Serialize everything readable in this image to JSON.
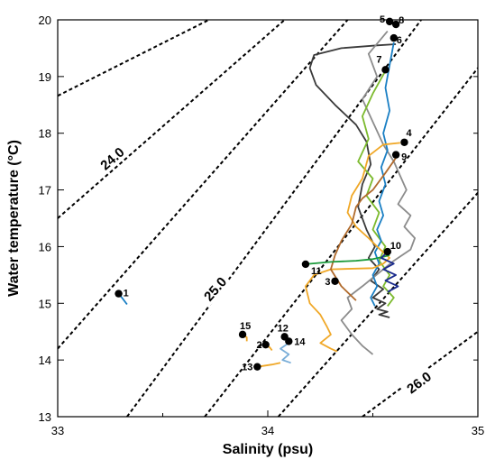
{
  "chart_data": {
    "type": "scatter",
    "title": "",
    "xlabel": "Salinity (psu)",
    "ylabel": "Water temperature (°C)",
    "xlim": [
      33,
      35
    ],
    "ylim": [
      13,
      20
    ],
    "x_ticks": [
      {
        "value": 33,
        "label": "33"
      },
      {
        "value": 34,
        "label": "34"
      },
      {
        "value": 35,
        "label": "35"
      }
    ],
    "x_minor_ticks": [
      33.5,
      34.5
    ],
    "y_ticks": [
      {
        "value": 13,
        "label": "13"
      },
      {
        "value": 14,
        "label": "14"
      },
      {
        "value": 15,
        "label": "15"
      },
      {
        "value": 16,
        "label": "16"
      },
      {
        "value": 17,
        "label": "17"
      },
      {
        "value": 18,
        "label": "18"
      },
      {
        "value": 19,
        "label": "19"
      },
      {
        "value": 20,
        "label": "20"
      }
    ],
    "grid": false,
    "legend": "none",
    "isopycnals": {
      "style": "dashed",
      "color": "#000000",
      "lines": [
        {
          "x": [
            33.0,
            33.72
          ],
          "y": [
            18.66,
            20.0
          ]
        },
        {
          "x": [
            33.0,
            34.08
          ],
          "y": [
            16.5,
            20.0
          ],
          "label": "24.0",
          "label_at": {
            "x": 33.26,
            "y": 17.55
          }
        },
        {
          "x": [
            33.0,
            34.38
          ],
          "y": [
            14.2,
            20.0
          ],
          "label": "25.0",
          "label_at": {
            "x": 33.75,
            "y": 15.25
          }
        },
        {
          "x": [
            33.33,
            34.73
          ],
          "y": [
            13.0,
            20.0
          ]
        },
        {
          "x": [
            33.7,
            35.0
          ],
          "y": [
            13.0,
            19.15
          ]
        },
        {
          "x": [
            34.05,
            35.0
          ],
          "y": [
            13.0,
            16.95
          ]
        },
        {
          "x": [
            34.45,
            35.0
          ],
          "y": [
            13.0,
            14.5
          ],
          "label": "26.0",
          "label_at": {
            "x": 34.72,
            "y": 13.6
          }
        }
      ]
    },
    "stations": [
      {
        "id": "1",
        "x": 33.29,
        "y": 15.17
      },
      {
        "id": "2",
        "x": 33.99,
        "y": 14.27
      },
      {
        "id": "3",
        "x": 34.32,
        "y": 15.39
      },
      {
        "id": "4",
        "x": 34.65,
        "y": 17.84
      },
      {
        "id": "5",
        "x": 34.58,
        "y": 19.97
      },
      {
        "id": "6",
        "x": 34.6,
        "y": 19.68
      },
      {
        "id": "7",
        "x": 34.56,
        "y": 19.12
      },
      {
        "id": "8",
        "x": 34.61,
        "y": 19.92
      },
      {
        "id": "9",
        "x": 34.61,
        "y": 17.62
      },
      {
        "id": "10",
        "x": 34.57,
        "y": 15.91
      },
      {
        "id": "11",
        "x": 34.18,
        "y": 15.69
      },
      {
        "id": "12",
        "x": 34.08,
        "y": 14.41
      },
      {
        "id": "13",
        "x": 33.95,
        "y": 13.88
      },
      {
        "id": "14",
        "x": 34.1,
        "y": 14.33
      },
      {
        "id": "15",
        "x": 33.88,
        "y": 14.45
      }
    ],
    "series": [
      {
        "color": "#3a3a3a",
        "x": [
          34.61,
          34.52,
          34.35,
          34.22,
          34.2,
          34.23,
          34.32,
          34.42,
          34.47,
          34.49,
          34.45,
          34.43,
          34.47,
          34.51,
          34.48,
          34.53,
          34.49,
          34.55,
          34.5,
          34.56,
          34.52,
          34.57,
          34.53,
          34.58
        ],
        "y": [
          19.57,
          19.55,
          19.5,
          19.38,
          19.15,
          18.85,
          18.5,
          18.15,
          17.85,
          17.45,
          17.1,
          16.7,
          16.3,
          16.0,
          15.8,
          15.6,
          15.4,
          15.25,
          15.1,
          15.0,
          14.9,
          14.85,
          14.8,
          14.75
        ]
      },
      {
        "color": "#8c8c8c",
        "x": [
          34.57,
          34.48,
          34.52,
          34.45,
          34.5,
          34.55,
          34.6,
          34.63,
          34.66,
          34.62,
          34.68,
          34.65,
          34.7,
          34.68,
          34.6,
          34.55,
          34.5,
          34.45,
          34.38,
          34.4,
          34.35,
          34.4,
          34.45,
          34.5
        ],
        "y": [
          19.8,
          19.4,
          19.0,
          18.6,
          18.2,
          17.8,
          17.5,
          17.25,
          17.0,
          16.75,
          16.55,
          16.35,
          16.15,
          15.95,
          15.75,
          15.6,
          15.45,
          15.3,
          15.1,
          14.9,
          14.7,
          14.45,
          14.25,
          14.1
        ]
      },
      {
        "color": "#7cba2e",
        "x": [
          34.56,
          34.5,
          34.45,
          34.48,
          34.43,
          34.5,
          34.47,
          34.53,
          34.5,
          34.56,
          34.53,
          34.58,
          34.55,
          34.6,
          34.57
        ],
        "y": [
          19.1,
          18.7,
          18.3,
          17.9,
          17.5,
          17.2,
          16.9,
          16.6,
          16.3,
          16.0,
          15.75,
          15.5,
          15.3,
          15.1,
          14.95
        ]
      },
      {
        "color": "#1a7fc4",
        "x": [
          34.6,
          34.58,
          34.56,
          34.58,
          34.55,
          34.57,
          34.54,
          34.56,
          34.53,
          34.55,
          34.52,
          34.54,
          34.51,
          34.53,
          34.5,
          34.52,
          34.49,
          34.51
        ],
        "y": [
          19.6,
          19.2,
          18.8,
          18.4,
          18.0,
          17.7,
          17.4,
          17.1,
          16.8,
          16.55,
          16.3,
          16.1,
          15.9,
          15.7,
          15.5,
          15.3,
          15.1,
          14.95
        ]
      },
      {
        "color": "#f0a828",
        "x": [
          34.63,
          34.55,
          34.48,
          34.45,
          34.4,
          34.38,
          34.42,
          34.48,
          34.52,
          34.58,
          34.55,
          34.5,
          34.3,
          34.22,
          34.18,
          34.2,
          34.25,
          34.28,
          34.3,
          34.25,
          34.3,
          34.33
        ],
        "y": [
          17.83,
          17.8,
          17.6,
          17.2,
          16.9,
          16.6,
          16.35,
          16.15,
          16.0,
          15.8,
          15.7,
          15.62,
          15.6,
          15.5,
          15.3,
          15.0,
          14.8,
          14.6,
          14.45,
          14.3,
          14.2,
          14.15
        ]
      },
      {
        "color": "#b06a2c",
        "x": [
          34.62,
          34.56,
          34.5,
          34.45,
          34.42,
          34.4,
          34.35,
          34.32,
          34.3,
          34.35,
          34.42
        ],
        "y": [
          17.62,
          17.3,
          17.0,
          16.85,
          16.7,
          16.4,
          16.1,
          15.85,
          15.6,
          15.3,
          15.05
        ]
      },
      {
        "color": "#1a9a3a",
        "x": [
          34.18,
          34.3,
          34.42,
          34.5,
          34.55,
          34.58
        ],
        "y": [
          15.69,
          15.73,
          15.75,
          15.78,
          15.82,
          15.85
        ]
      },
      {
        "color": "#1a2a8c",
        "x": [
          34.57,
          34.54,
          34.6,
          34.55,
          34.61,
          34.56,
          34.62,
          34.57
        ],
        "y": [
          15.91,
          15.8,
          15.7,
          15.6,
          15.5,
          15.4,
          15.3,
          15.2
        ]
      },
      {
        "color": "#1a7fc4",
        "x": [
          33.29,
          33.31,
          33.33
        ],
        "y": [
          15.17,
          15.08,
          14.98
        ]
      },
      {
        "color": "#7aaed8",
        "x": [
          34.08,
          34.1,
          34.06,
          34.1,
          34.07,
          34.11
        ],
        "y": [
          14.41,
          14.3,
          14.2,
          14.1,
          14.0,
          13.95
        ]
      },
      {
        "color": "#f0a828",
        "x": [
          33.95,
          34.02,
          34.06
        ],
        "y": [
          13.88,
          13.92,
          13.95
        ]
      },
      {
        "color": "#f0a828",
        "x": [
          33.88,
          33.9,
          33.9
        ],
        "y": [
          14.45,
          14.4,
          14.33
        ]
      },
      {
        "color": "#f0a828",
        "x": [
          33.99,
          34.01,
          34.02
        ],
        "y": [
          14.27,
          14.22,
          14.17
        ]
      }
    ]
  }
}
